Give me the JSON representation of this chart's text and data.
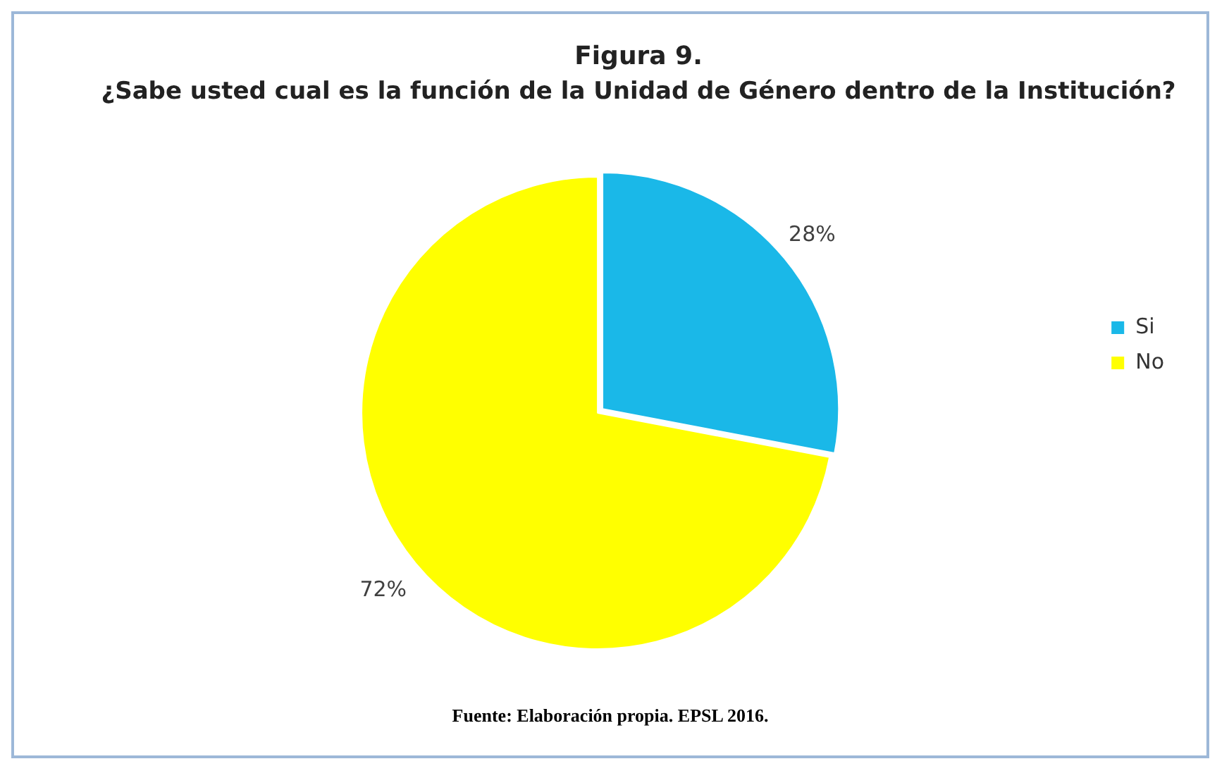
{
  "chart_data": {
    "type": "pie",
    "title": "Figura 9.",
    "subtitle": "¿Sabe usted cual es la función de la Unidad de Género dentro de la Institución?",
    "categories": [
      "Si",
      "No"
    ],
    "values": [
      28,
      72
    ],
    "colors": [
      "#1ab8e8",
      "#ffff00"
    ],
    "value_labels": [
      "28%",
      "72%"
    ],
    "legend": "right",
    "annotations": [
      "Fuente: Elaboración propia. EPSL 2016."
    ]
  }
}
